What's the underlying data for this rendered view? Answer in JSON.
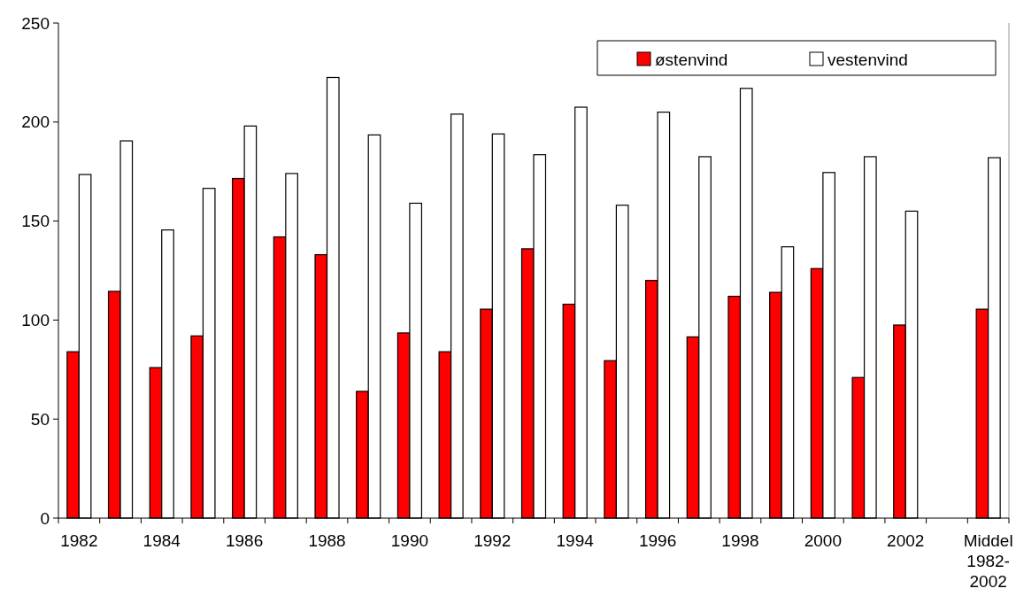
{
  "chart_data": {
    "type": "bar",
    "categories": [
      "1982",
      null,
      "1984",
      null,
      "1986",
      null,
      "1988",
      null,
      "1990",
      null,
      "1992",
      null,
      "1994",
      null,
      "1996",
      null,
      "1998",
      null,
      "2000",
      null,
      "2002",
      null,
      "Middel 1982-2002"
    ],
    "series": [
      {
        "name": "østenvind",
        "color": "#ff0000",
        "values": [
          84,
          114.5,
          76,
          92,
          171.5,
          142,
          133,
          64,
          93.5,
          84,
          105.5,
          136,
          108,
          79.5,
          120,
          91.5,
          112,
          114,
          126,
          71,
          97.5,
          null,
          105.5
        ]
      },
      {
        "name": "vestenvind",
        "color": "#ffffff",
        "values": [
          173.5,
          190.5,
          145.5,
          166.5,
          198,
          174,
          222.5,
          193.5,
          159,
          204,
          194,
          183.5,
          207.5,
          158,
          205,
          182.5,
          217,
          137,
          174.5,
          182.5,
          155,
          null,
          182
        ]
      }
    ],
    "ylim": [
      0,
      250
    ],
    "yticks": [
      0,
      50,
      100,
      150,
      200,
      250
    ],
    "grid": false,
    "legend": "top right"
  }
}
